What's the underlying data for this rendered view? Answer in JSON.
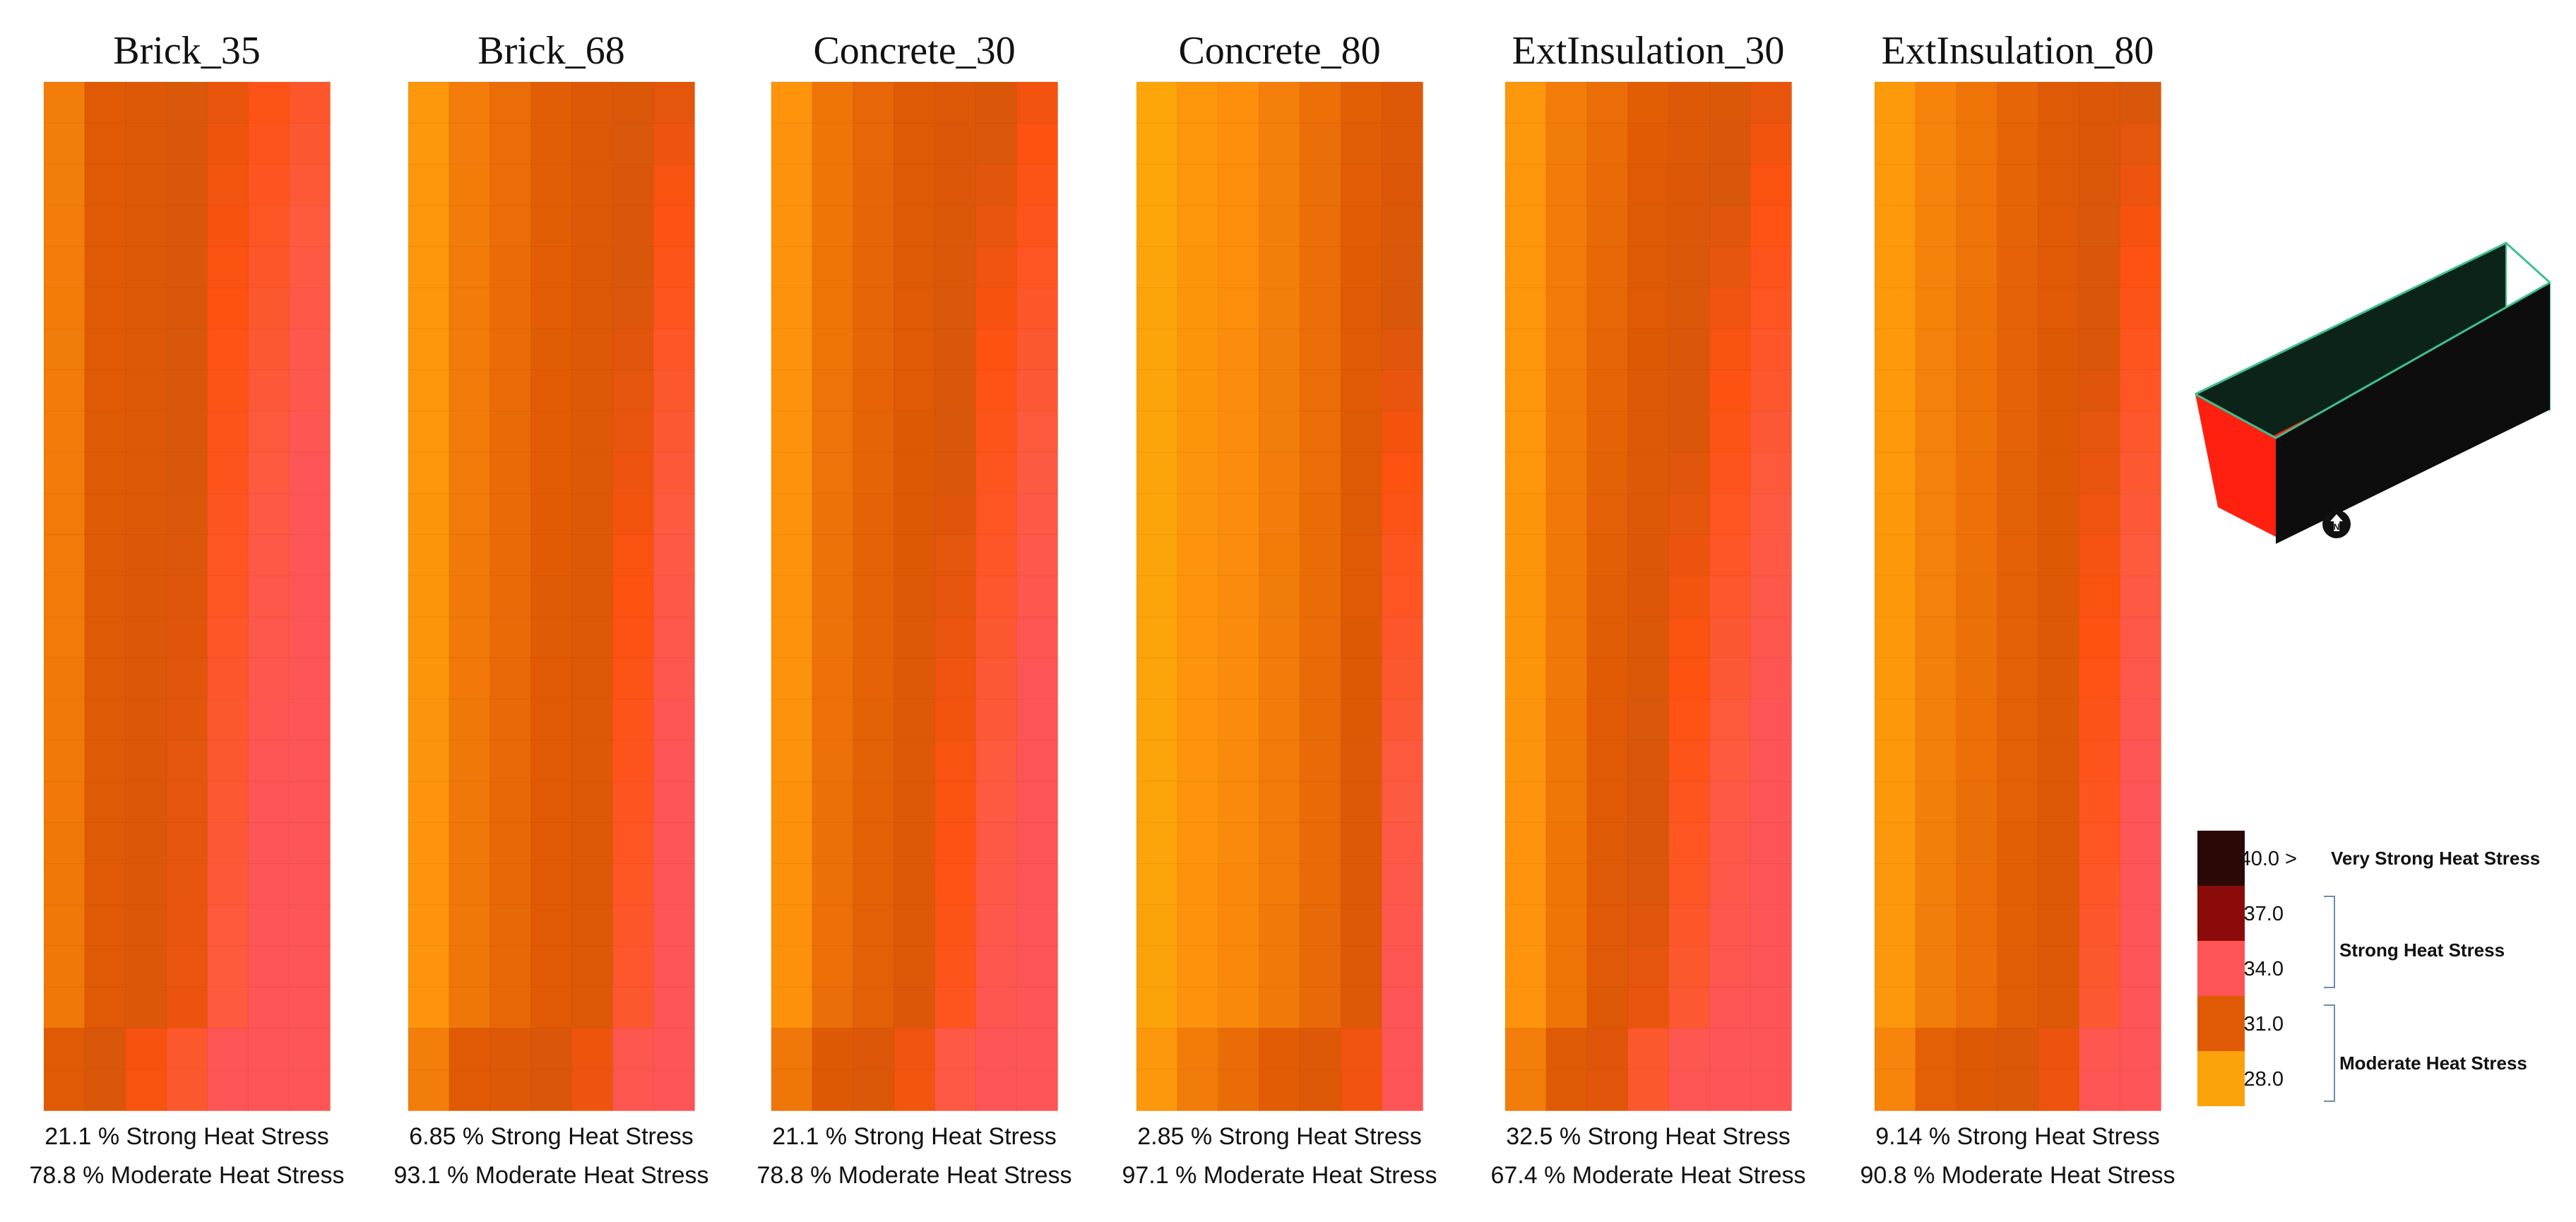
{
  "chart_data": {
    "type": "heatmap",
    "description_units": "degC (UTCI-style heat stress bins)",
    "panels": [
      {
        "title": "Brick_35",
        "strong_text": "21.1 % Strong Heat Stress",
        "moderate_text": "78.8 % Moderate Heat Stress",
        "strong_pct": 21.1,
        "moderate_pct": 78.8,
        "base": 30.6,
        "gradient": 0.45,
        "pink_band": 0.55
      },
      {
        "title": "Brick_68",
        "strong_text": "6.85 % Strong Heat Stress",
        "moderate_text": "93.1 % Moderate Heat Stress",
        "strong_pct": 6.85,
        "moderate_pct": 93.1,
        "base": 29.6,
        "gradient": 0.55,
        "pink_band": 0.3
      },
      {
        "title": "Concrete_30",
        "strong_text": "21.1 % Strong Heat Stress",
        "moderate_text": "78.8 % Moderate Heat Stress",
        "strong_pct": 21.1,
        "moderate_pct": 78.8,
        "base": 29.8,
        "gradient": 0.55,
        "pink_band": 0.55
      },
      {
        "title": "Concrete_80",
        "strong_text": "2.85 % Strong Heat Stress",
        "moderate_text": "97.1 % Moderate Heat Stress",
        "strong_pct": 2.85,
        "moderate_pct": 97.1,
        "base": 28.6,
        "gradient": 0.7,
        "pink_band": 0.2
      },
      {
        "title": "ExtInsulation_30",
        "strong_text": "32.5 % Strong Heat Stress",
        "moderate_text": "67.4 % Moderate Heat Stress",
        "strong_pct": 32.5,
        "moderate_pct": 67.4,
        "base": 29.6,
        "gradient": 0.6,
        "pink_band": 0.85
      },
      {
        "title": "ExtInsulation_80",
        "strong_text": "9.14 % Strong Heat Stress",
        "moderate_text": "90.8 % Moderate Heat Stress",
        "strong_pct": 9.14,
        "moderate_pct": 90.8,
        "base": 29.4,
        "gradient": 0.6,
        "pink_band": 0.35
      }
    ],
    "grid": {
      "rows": 25,
      "cols": 7
    },
    "legend": {
      "bins": [
        {
          "label": "40.0 >",
          "color": "#2b0806"
        },
        {
          "label": "37.0",
          "color": "#8b0b0a"
        },
        {
          "label": "34.0",
          "color": "#fd5555"
        },
        {
          "label": "31.0",
          "color": "#e05a05"
        },
        {
          "label": "28.0",
          "color": "#fca20a"
        }
      ],
      "categories": [
        "Very Strong Heat Stress",
        "Strong Heat Stress",
        "Moderate Heat Stress"
      ]
    }
  },
  "colors": {
    "moderate_light": "#fca20a",
    "moderate_mid": "#fd8a10",
    "moderate_dark": "#dd5806",
    "strong_orange": "#fe5a10",
    "strong_pink": "#fd5555",
    "box_dark": "#0b2318",
    "box_black": "#0d0d0d",
    "box_red": "#ff2010",
    "box_edge": "#3fbf8f"
  },
  "icons": {
    "north_arrow": "north-arrow-icon",
    "model": "street-canyon-model"
  }
}
